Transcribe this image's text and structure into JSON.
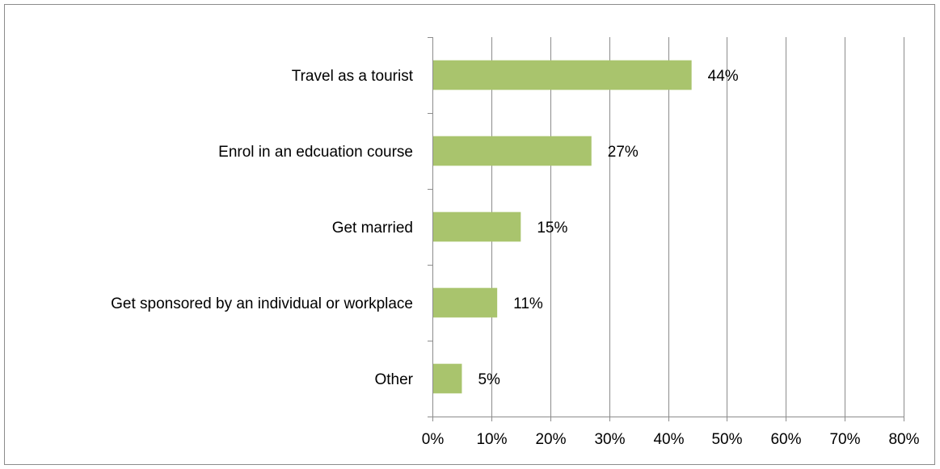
{
  "chart_data": {
    "type": "bar",
    "orientation": "horizontal",
    "categories": [
      "Travel as a tourist",
      "Enrol in an edcuation course",
      "Get married",
      "Get sponsored by an individual or workplace",
      "Other"
    ],
    "values": [
      44,
      27,
      15,
      11,
      5
    ],
    "data_labels": [
      "44%",
      "27%",
      "15%",
      "11%",
      "5%"
    ],
    "xlim": [
      0,
      80
    ],
    "x_ticks": [
      0,
      10,
      20,
      30,
      40,
      50,
      60,
      70,
      80
    ],
    "x_tick_labels": [
      "0%",
      "10%",
      "20%",
      "30%",
      "40%",
      "50%",
      "60%",
      "70%",
      "80%"
    ],
    "title": "",
    "xlabel": "",
    "ylabel": "",
    "grid": "vertical",
    "legend": "none",
    "colors": {
      "bar": "#a9c46d",
      "gridline": "#8c8c8c",
      "axis": "#8c8c8c",
      "frame": "#8c8c8c"
    }
  }
}
